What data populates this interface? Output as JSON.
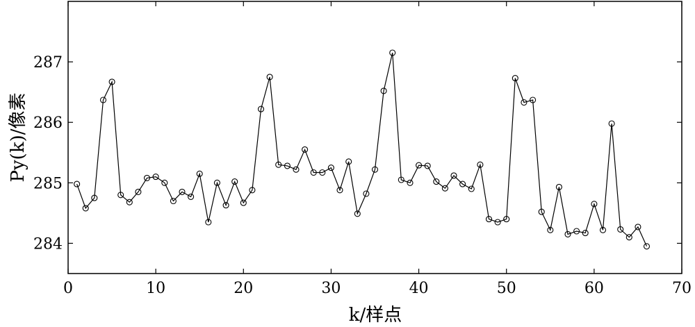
{
  "chart_data": {
    "type": "line",
    "title": "",
    "xlabel": "k/样点",
    "ylabel": "Py(k)/像素",
    "xlim": [
      0,
      70
    ],
    "ylim": [
      283.5,
      288
    ],
    "xticks": [
      0,
      10,
      20,
      30,
      40,
      50,
      60,
      70
    ],
    "yticks": [
      284,
      285,
      286,
      287
    ],
    "grid": false,
    "marker": "circle",
    "line_color": "#000000",
    "series": [
      {
        "x": [
          1,
          2,
          3,
          4,
          5,
          6,
          7,
          8,
          9,
          10,
          11,
          12,
          13,
          14,
          15,
          16,
          17,
          18,
          19,
          20,
          21,
          22,
          23,
          24,
          25,
          26,
          27,
          28,
          29,
          30,
          31,
          32,
          33,
          34,
          35,
          36,
          37,
          38,
          39,
          40,
          41,
          42,
          43,
          44,
          45,
          46,
          47,
          48,
          49,
          50,
          51,
          52,
          53,
          54,
          55,
          56,
          57,
          58,
          59,
          60,
          61,
          62,
          63,
          64,
          65,
          66
        ],
        "values": [
          284.98,
          284.58,
          284.75,
          286.37,
          286.67,
          284.8,
          284.68,
          284.85,
          285.08,
          285.1,
          285.0,
          284.7,
          284.85,
          284.77,
          285.15,
          284.35,
          285.0,
          284.63,
          285.02,
          284.67,
          284.88,
          286.22,
          286.75,
          285.3,
          285.28,
          285.22,
          285.55,
          285.17,
          285.17,
          285.25,
          284.88,
          285.35,
          284.49,
          284.82,
          285.22,
          286.52,
          287.15,
          285.05,
          285.0,
          285.29,
          285.28,
          285.02,
          284.91,
          285.12,
          284.98,
          284.9,
          285.3,
          284.4,
          284.35,
          284.4,
          286.73,
          286.33,
          286.37,
          284.52,
          284.22,
          284.93,
          284.15,
          284.2,
          284.17,
          284.65,
          284.22,
          285.98,
          284.23,
          284.1,
          284.27,
          283.95
        ]
      }
    ]
  }
}
